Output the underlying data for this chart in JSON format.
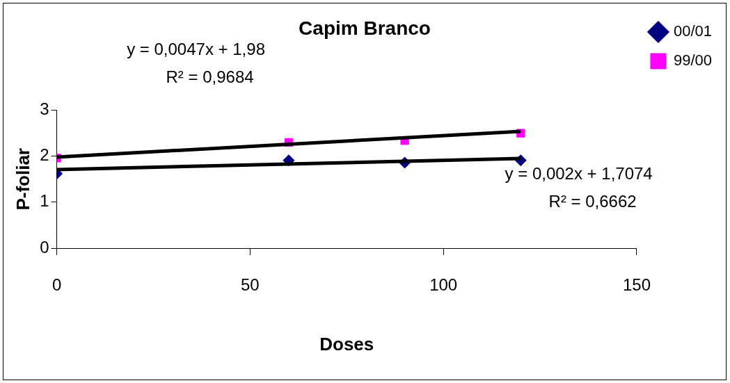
{
  "chart_data": {
    "type": "scatter",
    "title": "Capim Branco",
    "xlabel": "Doses",
    "ylabel": "P-foliar",
    "xlim": [
      0,
      150
    ],
    "xticks": [
      0,
      50,
      100,
      150
    ],
    "ylim": [
      0,
      3
    ],
    "yticks": [
      0,
      1,
      2,
      3
    ],
    "grid": false,
    "legend": "right",
    "series": [
      {
        "name": "00/01",
        "color": "#000080",
        "marker": "diamond",
        "x": [
          0,
          60,
          90,
          120
        ],
        "values": [
          1.62,
          1.91,
          1.86,
          1.91
        ]
      },
      {
        "name": "99/00",
        "color": "#ff00ff",
        "marker": "square",
        "x": [
          0,
          60,
          90,
          120
        ],
        "values": [
          1.96,
          2.3,
          2.34,
          2.5
        ]
      },
      {
        "type": "line",
        "color": "#000000",
        "marker": "none",
        "x": [
          0,
          120
        ],
        "values": [
          1.98,
          2.54
        ]
      },
      {
        "type": "line",
        "color": "#000000",
        "marker": "none",
        "x": [
          0,
          120
        ],
        "values": [
          1.71,
          1.95
        ]
      }
    ],
    "annotations": [
      "y = 0,0047x + 1,98\nR² = 0,9684",
      "y = 0,002x + 1,7074\nR² = 0,6662"
    ]
  }
}
